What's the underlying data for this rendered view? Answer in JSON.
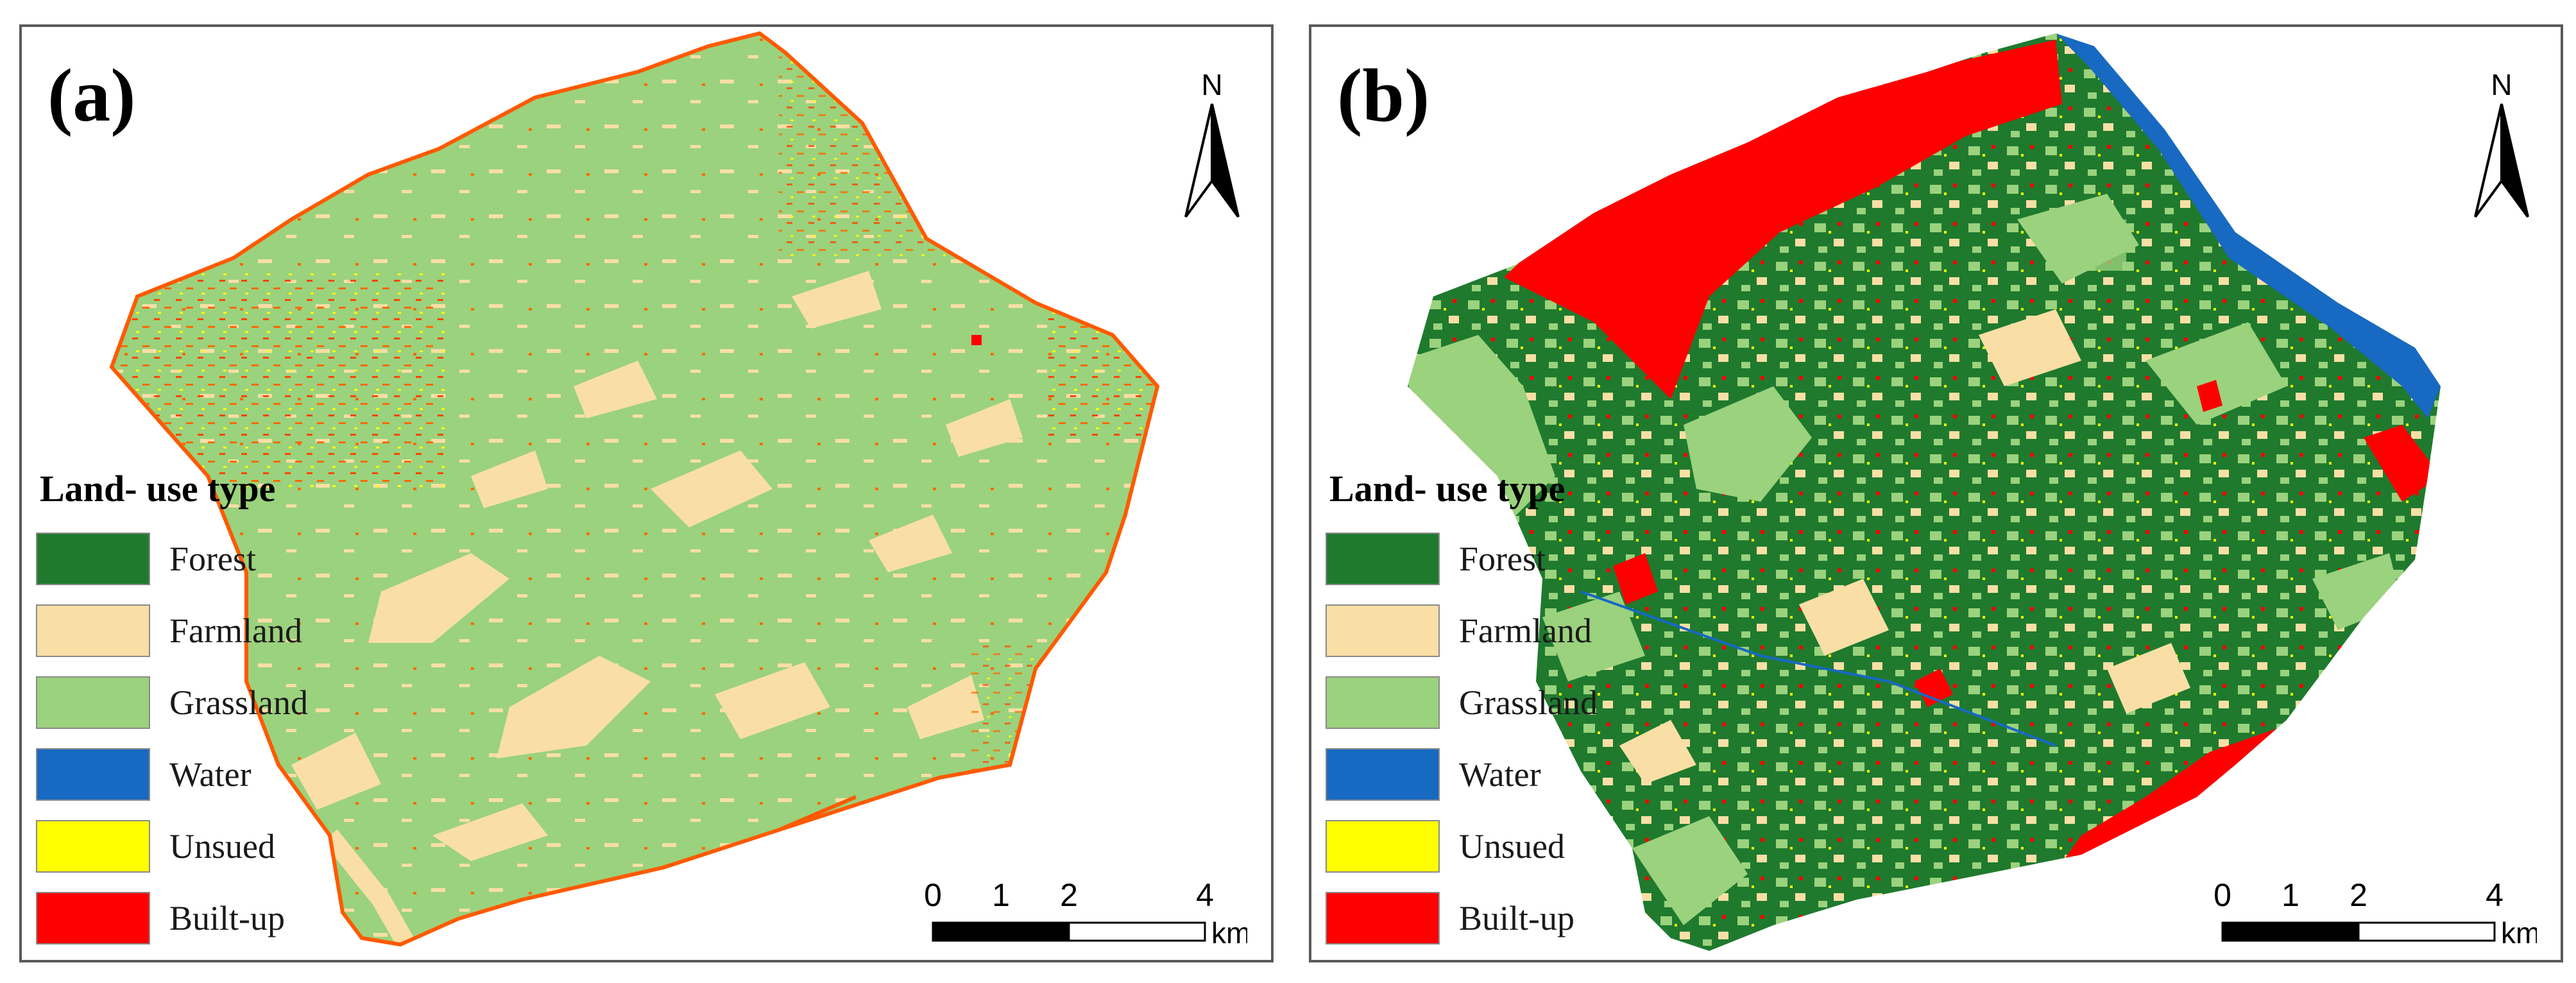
{
  "panels": [
    {
      "id": "a",
      "label": "(a)"
    },
    {
      "id": "b",
      "label": "(b)"
    }
  ],
  "north_arrow": {
    "letter": "N"
  },
  "legend": {
    "title": "Land- use type",
    "items": [
      {
        "label": "Forest",
        "color": "#1f7a2e"
      },
      {
        "label": "Farmland",
        "color": "#f9dfa5"
      },
      {
        "label": "Grassland",
        "color": "#9bd27d"
      },
      {
        "label": "Water",
        "color": "#1769c2"
      },
      {
        "label": "Unsued",
        "color": "#ffff00"
      },
      {
        "label": "Built-up",
        "color": "#ff0000"
      }
    ]
  },
  "scale_bar": {
    "ticks": [
      "0",
      "1",
      "2",
      "4"
    ],
    "unit": "km"
  }
}
